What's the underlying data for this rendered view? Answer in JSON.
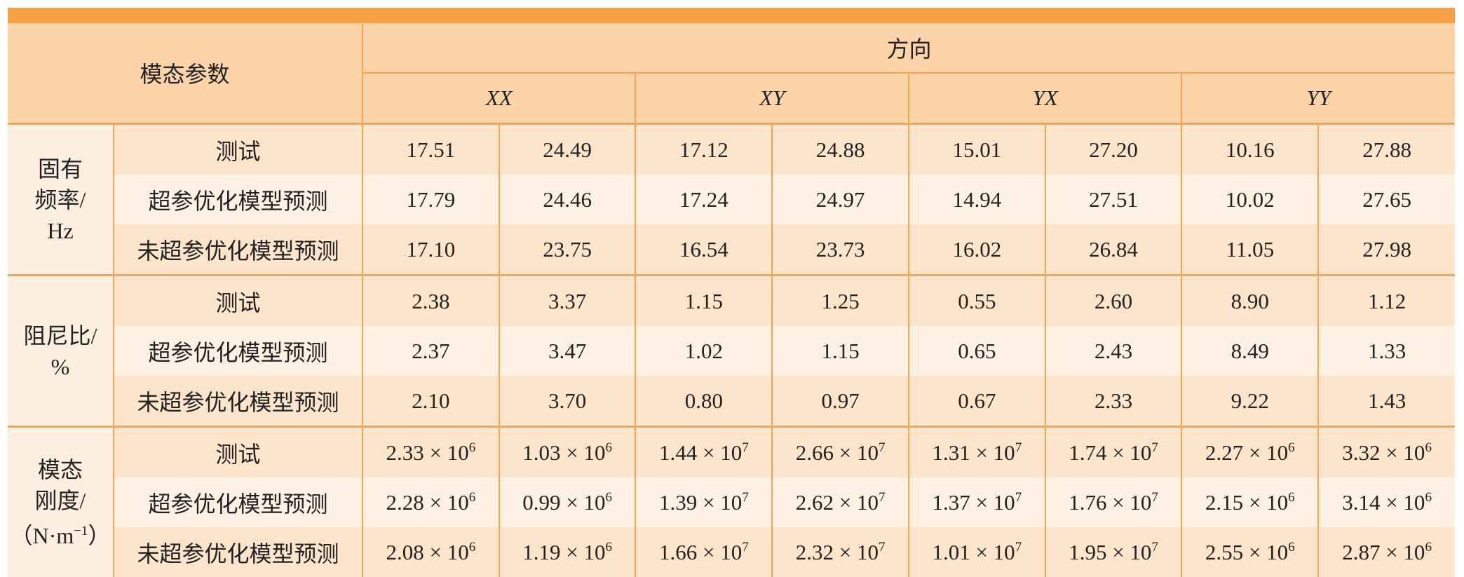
{
  "header": {
    "param": "模态参数",
    "direction": "方向",
    "dirs": [
      "XX",
      "XY",
      "YX",
      "YY"
    ]
  },
  "groups": [
    {
      "label": [
        [
          "固有"
        ],
        [
          "频率/"
        ],
        [
          "Hz"
        ]
      ],
      "rows": [
        {
          "name": "测试",
          "cells": [
            "17.51",
            "24.49",
            "17.12",
            "24.88",
            "15.01",
            "27.20",
            "10.16",
            "27.88"
          ]
        },
        {
          "name": "超参优化模型预测",
          "cells": [
            "17.79",
            "24.46",
            "17.24",
            "24.97",
            "14.94",
            "27.51",
            "10.02",
            "27.65"
          ]
        },
        {
          "name": "未超参优化模型预测",
          "cells": [
            "17.10",
            "23.75",
            "16.54",
            "23.73",
            "16.02",
            "26.84",
            "11.05",
            "27.98"
          ]
        }
      ]
    },
    {
      "label": [
        [
          "阻尼比/"
        ],
        [
          "%"
        ]
      ],
      "rows": [
        {
          "name": "测试",
          "cells": [
            "2.38",
            "3.37",
            "1.15",
            "1.25",
            "0.55",
            "2.60",
            "8.90",
            "1.12"
          ]
        },
        {
          "name": "超参优化模型预测",
          "cells": [
            "2.37",
            "3.47",
            "1.02",
            "1.15",
            "0.65",
            "2.43",
            "8.49",
            "1.33"
          ]
        },
        {
          "name": "未超参优化模型预测",
          "cells": [
            "2.10",
            "3.70",
            "0.80",
            "0.97",
            "0.67",
            "2.33",
            "9.22",
            "1.43"
          ]
        }
      ]
    },
    {
      "label": [
        [
          "模态"
        ],
        [
          "刚度/"
        ],
        [
          "（N·m",
          {
            "sup": "−1"
          },
          "）"
        ]
      ],
      "rows": [
        {
          "name": "测试",
          "cells": [
            [
              "2.33 × 10",
              {
                "sup": "6"
              }
            ],
            [
              "1.03 × 10",
              {
                "sup": "6"
              }
            ],
            [
              "1.44 × 10",
              {
                "sup": "7"
              }
            ],
            [
              "2.66 × 10",
              {
                "sup": "7"
              }
            ],
            [
              "1.31 × 10",
              {
                "sup": "7"
              }
            ],
            [
              "1.74 × 10",
              {
                "sup": "7"
              }
            ],
            [
              "2.27 × 10",
              {
                "sup": "6"
              }
            ],
            [
              "3.32 × 10",
              {
                "sup": "6"
              }
            ]
          ]
        },
        {
          "name": "超参优化模型预测",
          "cells": [
            [
              "2.28 × 10",
              {
                "sup": "6"
              }
            ],
            [
              "0.99 × 10",
              {
                "sup": "6"
              }
            ],
            [
              "1.39 × 10",
              {
                "sup": "7"
              }
            ],
            [
              "2.62 × 10",
              {
                "sup": "7"
              }
            ],
            [
              "1.37 × 10",
              {
                "sup": "7"
              }
            ],
            [
              "1.76 × 10",
              {
                "sup": "7"
              }
            ],
            [
              "2.15 × 10",
              {
                "sup": "6"
              }
            ],
            [
              "3.14 × 10",
              {
                "sup": "6"
              }
            ]
          ]
        },
        {
          "name": "未超参优化模型预测",
          "cells": [
            [
              "2.08 × 10",
              {
                "sup": "6"
              }
            ],
            [
              "1.19 × 10",
              {
                "sup": "6"
              }
            ],
            [
              "1.66 × 10",
              {
                "sup": "7"
              }
            ],
            [
              "2.32 × 10",
              {
                "sup": "7"
              }
            ],
            [
              "1.01 × 10",
              {
                "sup": "7"
              }
            ],
            [
              "1.95 × 10",
              {
                "sup": "7"
              }
            ],
            [
              "2.55 × 10",
              {
                "sup": "6"
              }
            ],
            [
              "2.87 × 10",
              {
                "sup": "6"
              }
            ]
          ]
        }
      ]
    }
  ]
}
